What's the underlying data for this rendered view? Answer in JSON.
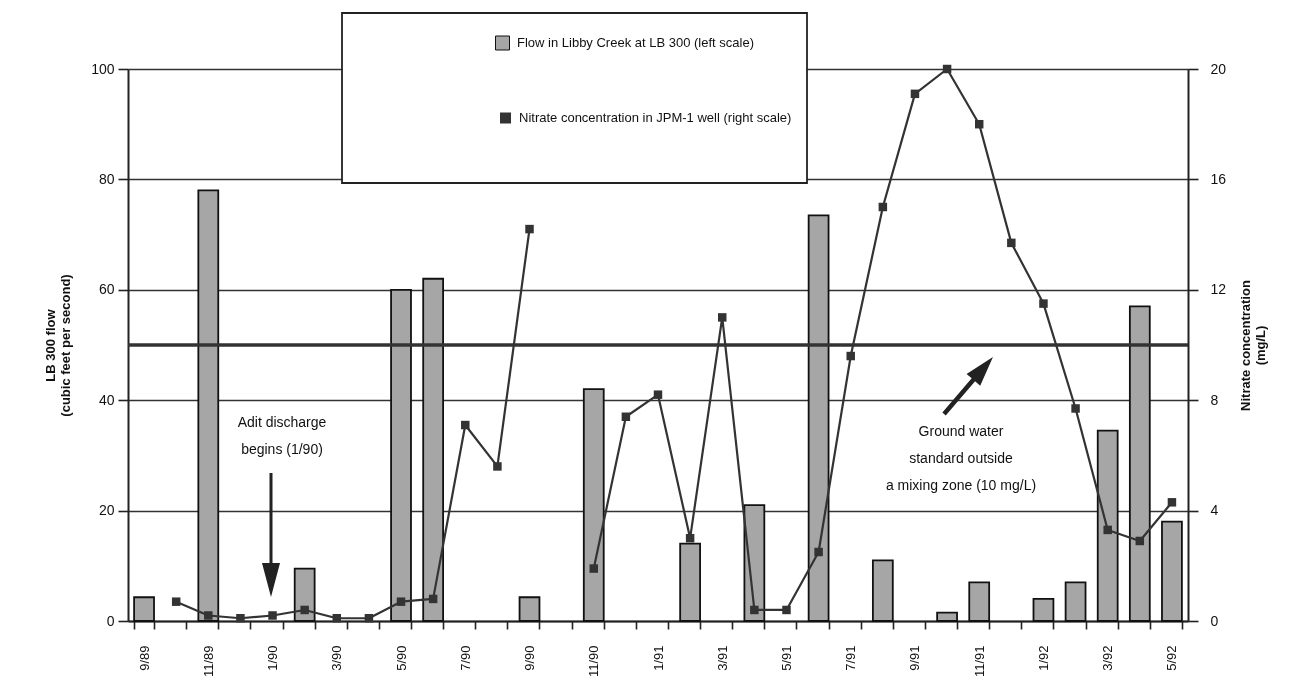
{
  "chart_data": {
    "type": "bar",
    "categories": [
      "9/89",
      null,
      "11/89",
      null,
      "1/90",
      null,
      "3/90",
      null,
      "5/90",
      null,
      "7/90",
      null,
      "9/90",
      null,
      "11/90",
      null,
      "1/91",
      null,
      "3/91",
      null,
      "5/91",
      null,
      "7/91",
      null,
      "9/91",
      null,
      "11/91",
      null,
      "1/92",
      null,
      "3/92",
      null,
      "5/92"
    ],
    "series": [
      {
        "name": "Flow in Libby Creek at LB 300 (left scale)",
        "type": "bar",
        "color": "#a6a6a6",
        "values": [
          4.3,
          null,
          78,
          null,
          null,
          9.5,
          null,
          null,
          60,
          62,
          null,
          null,
          4.3,
          null,
          42,
          null,
          null,
          14,
          null,
          21,
          null,
          73.5,
          null,
          11,
          null,
          1.5,
          7,
          null,
          4,
          7,
          34.5,
          57,
          18
        ]
      },
      {
        "name": "Nitrate concentration in JPM-1 well (right scale)",
        "type": "line",
        "axis": "y2",
        "color": "#333333",
        "values": [
          null,
          0.7,
          0.2,
          0.1,
          0.2,
          0.4,
          0.1,
          0.1,
          0.7,
          0.8,
          7.1,
          5.6,
          14.2,
          null,
          1.9,
          7.4,
          8.2,
          3,
          11,
          0.4,
          0.4,
          2.5,
          9.6,
          15,
          19.1,
          20,
          18,
          13.7,
          11.5,
          7.7,
          3.3,
          2.9,
          4.3
        ]
      }
    ],
    "ylabel": "LB 300 flow\n(cubic feet per second)",
    "y2label": "Nitrate concentration\n(mg/L)",
    "ylim": [
      0,
      100
    ],
    "yticks": [
      0,
      20,
      40,
      60,
      80,
      100
    ],
    "y2lim": [
      0,
      20
    ],
    "y2ticks": [
      0,
      4,
      8,
      12,
      16,
      20
    ],
    "grid": "y",
    "legend": "top",
    "marker": "square",
    "line_style": "solid",
    "ref_lines": [
      {
        "axis": "y2",
        "value": 10,
        "color": "#333333"
      }
    ],
    "annotations": [
      "Adit discharge\nbegins (1/90)",
      "Ground water\nstandard outside\na mixing zone (10 mg/L)"
    ]
  }
}
